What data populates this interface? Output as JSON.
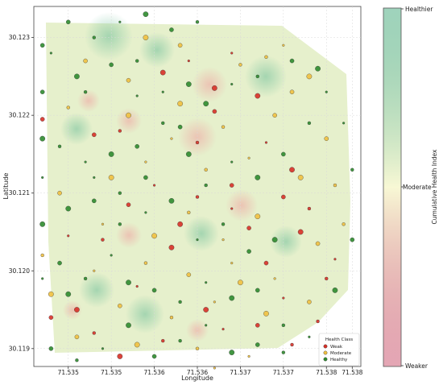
{
  "chart_data": {
    "type": "scatter",
    "xlabel": "Longitude",
    "ylabel": "Latitude",
    "xlim": [
      71.5346,
      71.5384
    ],
    "ylim": [
      30.11877,
      30.1234
    ],
    "x_ticks": [
      {
        "value": 71.535,
        "label": "71.535"
      },
      {
        "value": 71.5355,
        "label": "71.535"
      },
      {
        "value": 71.536,
        "label": "71.536"
      },
      {
        "value": 71.5365,
        "label": "71.536"
      },
      {
        "value": 71.537,
        "label": "71.537"
      },
      {
        "value": 71.5375,
        "label": "71.537"
      },
      {
        "value": 71.538,
        "label": "71.538"
      },
      {
        "value": 71.5383,
        "label": "71.538"
      }
    ],
    "y_ticks": [
      {
        "value": 30.119,
        "label": "30.119"
      },
      {
        "value": 30.12,
        "label": "30.120"
      },
      {
        "value": 30.121,
        "label": "30.121"
      },
      {
        "value": 30.122,
        "label": "30.122"
      },
      {
        "value": 30.123,
        "label": "30.123"
      }
    ],
    "grid": true,
    "legend": {
      "title": "Health Class",
      "placement": "bottom-right",
      "entries": [
        {
          "label": "Weak",
          "color": "#d73027"
        },
        {
          "label": "Moderate",
          "color": "#f0c040"
        },
        {
          "label": "Healthy",
          "color": "#2e8b2e"
        }
      ]
    },
    "colorbar": {
      "label": "Cumulative Health Index",
      "top_label": "Healthier",
      "mid_label": "Moderate",
      "bottom_label": "Weaker",
      "colors": [
        "#2a9d6a",
        "#f7f7d0",
        "#c23a5a"
      ]
    },
    "series": [
      {
        "name": "Weak",
        "color": "#d73027",
        "points": [
          [
            71.5369,
            30.1228
          ],
          [
            71.5361,
            30.12255
          ],
          [
            71.5367,
            30.12205
          ],
          [
            71.5365,
            30.12165
          ],
          [
            71.5373,
            30.12165
          ],
          [
            71.5376,
            30.1213
          ],
          [
            71.5369,
            30.1211
          ],
          [
            71.5365,
            30.12095
          ],
          [
            71.536,
            30.1211
          ],
          [
            71.5377,
            30.1205
          ],
          [
            71.5373,
            30.1201
          ],
          [
            71.538,
            30.1199
          ],
          [
            71.5375,
            30.11965
          ],
          [
            71.5366,
            30.1195
          ],
          [
            71.5372,
            30.1193
          ],
          [
            71.5376,
            30.11905
          ],
          [
            71.5369,
            30.1208
          ],
          [
            71.5363,
            30.1206
          ],
          [
            71.5357,
            30.12085
          ],
          [
            71.5354,
            30.1204
          ],
          [
            71.5358,
            30.1198
          ],
          [
            71.5351,
            30.1195
          ],
          [
            71.5348,
            30.1194
          ],
          [
            71.5353,
            30.1192
          ],
          [
            71.535,
            30.12045
          ],
          [
            71.5362,
            30.1203
          ],
          [
            71.5371,
            30.12055
          ],
          [
            71.5378,
            30.1208
          ],
          [
            71.5381,
            30.12015
          ],
          [
            71.5367,
            30.12235
          ],
          [
            71.5347,
            30.12195
          ],
          [
            71.5356,
            30.1218
          ],
          [
            71.5364,
            30.1227
          ],
          [
            71.5372,
            30.12225
          ],
          [
            71.5375,
            30.12095
          ],
          [
            71.5361,
            30.1191
          ],
          [
            71.5368,
            30.11925
          ],
          [
            71.5356,
            30.1189
          ],
          [
            71.5353,
            30.12175
          ],
          [
            71.5379,
            30.11935
          ]
        ]
      },
      {
        "name": "Moderate",
        "color": "#f0c040",
        "points": [
          [
            71.5359,
            30.123
          ],
          [
            71.5363,
            30.1229
          ],
          [
            71.537,
            30.12265
          ],
          [
            71.5375,
            30.1229
          ],
          [
            71.5378,
            30.1225
          ],
          [
            71.5374,
            30.122
          ],
          [
            71.5368,
            30.12185
          ],
          [
            71.5362,
            30.1217
          ],
          [
            71.5357,
            30.122
          ],
          [
            71.5352,
            30.1227
          ],
          [
            71.535,
            30.1221
          ],
          [
            71.5371,
            30.12145
          ],
          [
            71.5377,
            30.1212
          ],
          [
            71.538,
            30.1217
          ],
          [
            71.5366,
            30.1213
          ],
          [
            71.5359,
            30.1214
          ],
          [
            71.5355,
            30.1212
          ],
          [
            71.5349,
            30.121
          ],
          [
            71.5364,
            30.12075
          ],
          [
            71.5368,
            30.1204
          ],
          [
            71.5372,
            30.1207
          ],
          [
            71.5379,
            30.12035
          ],
          [
            71.5382,
            30.1206
          ],
          [
            71.5374,
            30.1199
          ],
          [
            71.537,
            30.11985
          ],
          [
            71.5364,
            30.11995
          ],
          [
            71.5359,
            30.1201
          ],
          [
            71.5353,
            30.12
          ],
          [
            71.5348,
            30.1197
          ],
          [
            71.5356,
            30.11955
          ],
          [
            71.5362,
            30.1194
          ],
          [
            71.5367,
            30.1196
          ],
          [
            71.5373,
            30.11945
          ],
          [
            71.5378,
            30.1196
          ],
          [
            71.5365,
            30.119
          ],
          [
            71.5371,
            30.1189
          ],
          [
            71.5358,
            30.11905
          ],
          [
            71.5351,
            30.11915
          ],
          [
            71.5347,
            30.1202
          ],
          [
            71.5354,
            30.1206
          ],
          [
            71.536,
            30.12045
          ],
          [
            71.5376,
            30.1223
          ],
          [
            71.5381,
            30.1211
          ],
          [
            71.5369,
            30.1201
          ],
          [
            71.5363,
            30.12215
          ],
          [
            71.5357,
            30.12245
          ],
          [
            71.5373,
            30.12275
          ],
          [
            71.5367,
            30.11875
          ]
        ]
      },
      {
        "name": "Healthy",
        "color": "#2e8b2e",
        "points": [
          [
            71.535,
            30.1232
          ],
          [
            71.5353,
            30.123
          ],
          [
            71.5356,
            30.1232
          ],
          [
            71.5359,
            30.1233
          ],
          [
            71.5362,
            30.1231
          ],
          [
            71.5365,
            30.1232
          ],
          [
            71.5348,
            30.1228
          ],
          [
            71.5351,
            30.1225
          ],
          [
            71.5355,
            30.12265
          ],
          [
            71.5358,
            30.1227
          ],
          [
            71.5361,
            30.1223
          ],
          [
            71.5364,
            30.1224
          ],
          [
            71.5347,
            30.1223
          ],
          [
            71.5349,
            30.1216
          ],
          [
            71.5352,
            30.1214
          ],
          [
            71.5355,
            30.1215
          ],
          [
            71.5358,
            30.1216
          ],
          [
            71.5361,
            30.1219
          ],
          [
            71.5347,
            30.1212
          ],
          [
            71.535,
            30.1208
          ],
          [
            71.5353,
            30.1209
          ],
          [
            71.5356,
            30.1206
          ],
          [
            71.5359,
            30.12075
          ],
          [
            71.5347,
            30.1206
          ],
          [
            71.5349,
            30.1201
          ],
          [
            71.5352,
            30.1199
          ],
          [
            71.5355,
            30.1202
          ],
          [
            71.5357,
            30.11985
          ],
          [
            71.536,
            30.11975
          ],
          [
            71.5363,
            30.1196
          ],
          [
            71.5366,
            30.11985
          ],
          [
            71.5369,
            30.11965
          ],
          [
            71.5372,
            30.11975
          ],
          [
            71.5375,
            30.1193
          ],
          [
            71.5378,
            30.11915
          ],
          [
            71.5381,
            30.11975
          ],
          [
            71.5383,
            30.1204
          ],
          [
            71.5383,
            30.1213
          ],
          [
            71.5382,
            30.1219
          ],
          [
            71.5379,
            30.1226
          ],
          [
            71.5376,
            30.1227
          ],
          [
            71.5372,
            30.1225
          ],
          [
            71.5369,
            30.1224
          ],
          [
            71.5366,
            30.12215
          ],
          [
            71.5363,
            30.12185
          ],
          [
            71.5366,
            30.1211
          ],
          [
            71.5369,
            30.1214
          ],
          [
            71.5372,
            30.1212
          ],
          [
            71.5375,
            30.1215
          ],
          [
            71.5378,
            30.1219
          ],
          [
            71.538,
            30.1223
          ],
          [
            71.5374,
            30.1204
          ],
          [
            71.5371,
            30.12025
          ],
          [
            71.5368,
            30.1206
          ],
          [
            71.5365,
            30.1204
          ],
          [
            71.5362,
            30.1209
          ],
          [
            71.5359,
            30.1212
          ],
          [
            71.5356,
            30.121
          ],
          [
            71.5353,
            30.1212
          ],
          [
            71.535,
            30.1197
          ],
          [
            71.5348,
            30.119
          ],
          [
            71.5351,
            30.11885
          ],
          [
            71.5354,
            30.119
          ],
          [
            71.5357,
            30.1193
          ],
          [
            71.536,
            30.1189
          ],
          [
            71.5363,
            30.1191
          ],
          [
            71.5366,
            30.1193
          ],
          [
            71.5369,
            30.11895
          ],
          [
            71.5372,
            30.11905
          ],
          [
            71.5375,
            30.11895
          ],
          [
            71.5347,
            30.1199
          ],
          [
            71.5347,
            30.1217
          ],
          [
            71.5347,
            30.1229
          ],
          [
            71.5352,
            30.1223
          ],
          [
            71.5358,
            30.12225
          ],
          [
            71.5364,
            30.1215
          ]
        ]
      }
    ]
  }
}
